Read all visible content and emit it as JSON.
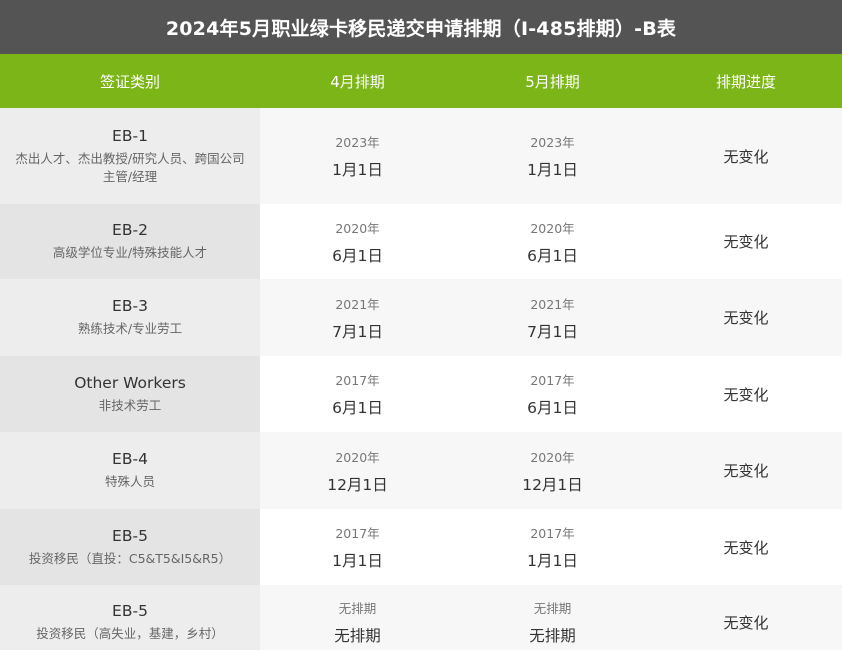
{
  "title": "2024年5月职业绿卡移民递交申请排期（I-485排期）-B表",
  "headers": {
    "category": "签证类别",
    "april": "4月排期",
    "may": "5月排期",
    "progress": "排期进度"
  },
  "rows": [
    {
      "code": "EB-1",
      "desc": "杰出人才、杰出教授/研究人员、跨国公司主管/经理",
      "apr_year": "2023年",
      "apr_day": "1月1日",
      "may_year": "2023年",
      "may_day": "1月1日",
      "progress": "无变化"
    },
    {
      "code": "EB-2",
      "desc": "高级学位专业/特殊技能人才",
      "apr_year": "2020年",
      "apr_day": "6月1日",
      "may_year": "2020年",
      "may_day": "6月1日",
      "progress": "无变化"
    },
    {
      "code": "EB-3",
      "desc": "熟练技术/专业劳工",
      "apr_year": "2021年",
      "apr_day": "7月1日",
      "may_year": "2021年",
      "may_day": "7月1日",
      "progress": "无变化"
    },
    {
      "code": "Other Workers",
      "desc": "非技术劳工",
      "apr_year": "2017年",
      "apr_day": "6月1日",
      "may_year": "2017年",
      "may_day": "6月1日",
      "progress": "无变化"
    },
    {
      "code": "EB-4",
      "desc": "特殊人员",
      "apr_year": "2020年",
      "apr_day": "12月1日",
      "may_year": "2020年",
      "may_day": "12月1日",
      "progress": "无变化"
    },
    {
      "code": "EB-5",
      "desc": "投资移民（直投：C5&T5&I5&R5）",
      "apr_year": "2017年",
      "apr_day": "1月1日",
      "may_year": "2017年",
      "may_day": "1月1日",
      "progress": "无变化"
    },
    {
      "code": "EB-5",
      "desc": "投资移民（高失业，基建，乡村）",
      "apr_year": "无排期",
      "apr_day": "无排期",
      "may_year": "无排期",
      "may_day": "无排期",
      "progress": "无变化"
    }
  ]
}
